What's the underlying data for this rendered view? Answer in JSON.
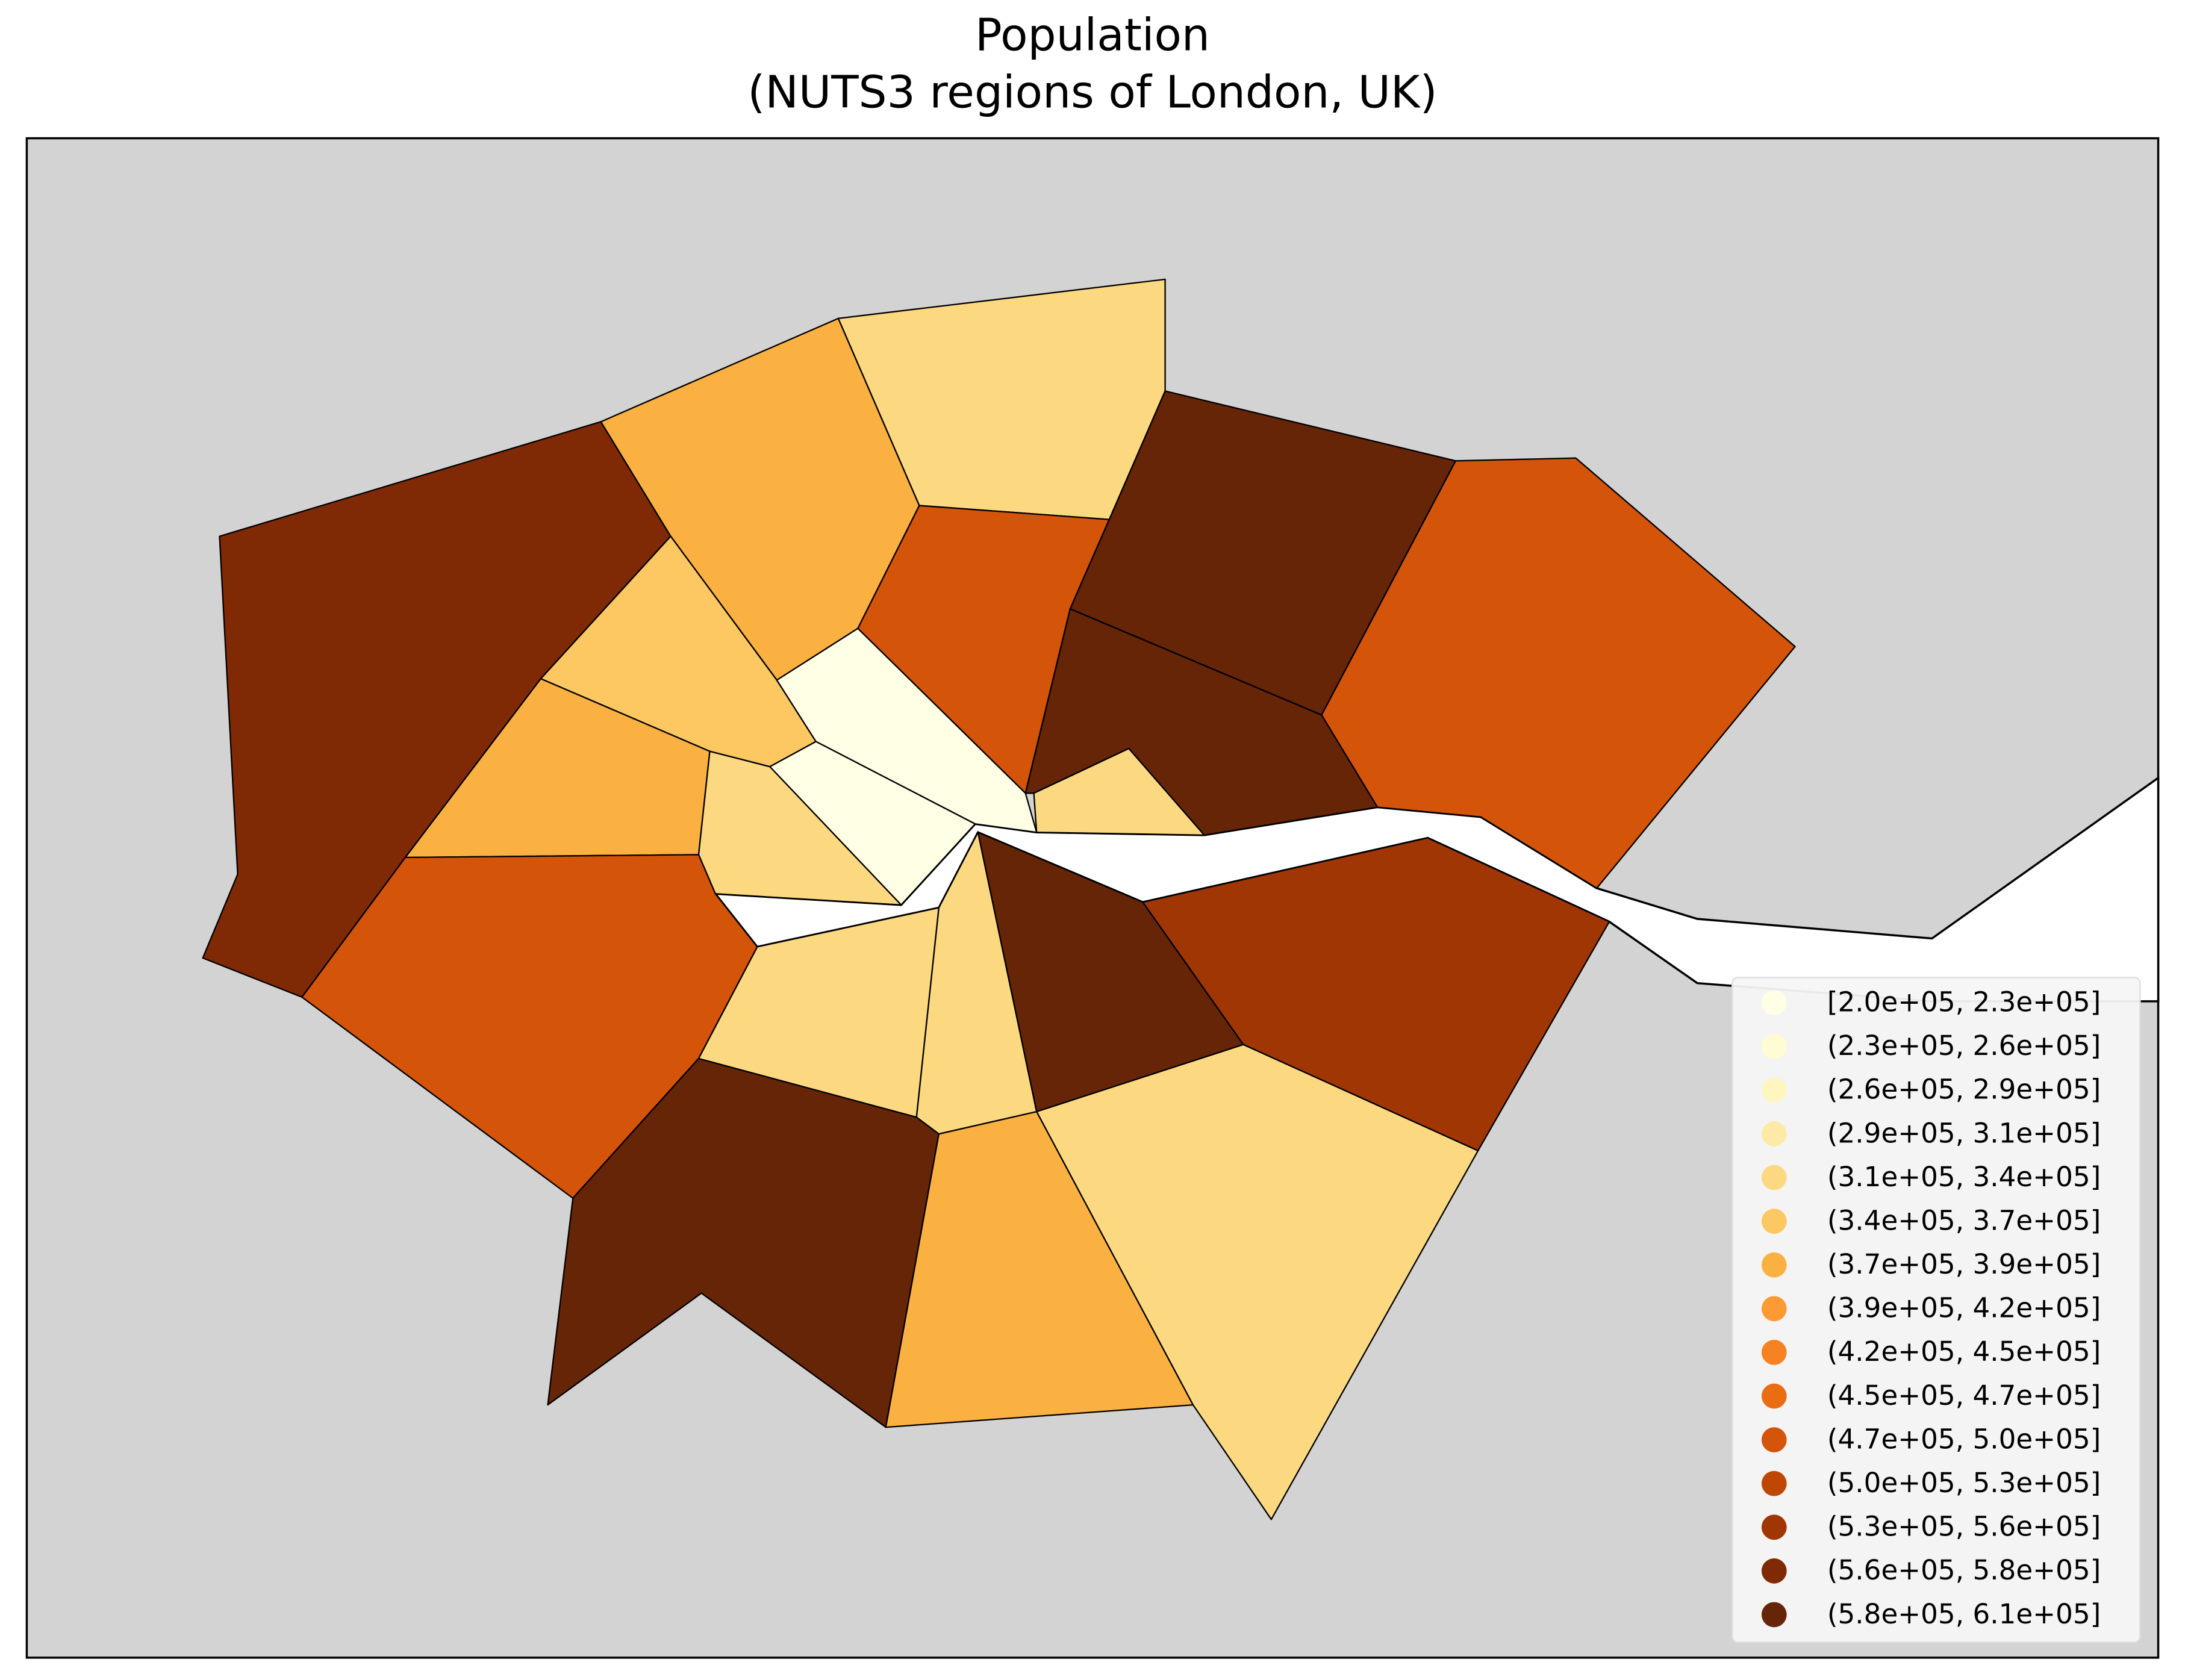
{
  "chart_data": {
    "type": "choropleth",
    "title": "Population",
    "subtitle": "(NUTS3 regions of London, UK)",
    "legend": [
      {
        "label": "[2.0e+05, 2.3e+05]",
        "color": "#ffffe5"
      },
      {
        "label": "(2.3e+05, 2.6e+05]",
        "color": "#fffbd2"
      },
      {
        "label": "(2.6e+05, 2.9e+05]",
        "color": "#fff5bf"
      },
      {
        "label": "(2.9e+05, 3.1e+05]",
        "color": "#feeaa6"
      },
      {
        "label": "(3.1e+05, 3.4e+05]",
        "color": "#fcd980"
      },
      {
        "label": "(3.4e+05, 3.7e+05]",
        "color": "#fdc762"
      },
      {
        "label": "(3.7e+05, 3.9e+05]",
        "color": "#fbb142"
      },
      {
        "label": "(3.9e+05, 4.2e+05]",
        "color": "#fd9a33"
      },
      {
        "label": "(4.2e+05, 4.5e+05]",
        "color": "#f68222"
      },
      {
        "label": "(4.5e+05, 4.7e+05]",
        "color": "#ea6d14"
      },
      {
        "label": "(4.7e+05, 5.0e+05]",
        "color": "#d45409"
      },
      {
        "label": "(5.0e+05, 5.3e+05]",
        "color": "#bf4704"
      },
      {
        "label": "(5.3e+05, 5.6e+05]",
        "color": "#a03604"
      },
      {
        "label": "(5.6e+05, 5.8e+05]",
        "color": "#7f2a04"
      },
      {
        "label": "(5.8e+05, 6.1e+05]",
        "color": "#662506"
      }
    ]
  }
}
